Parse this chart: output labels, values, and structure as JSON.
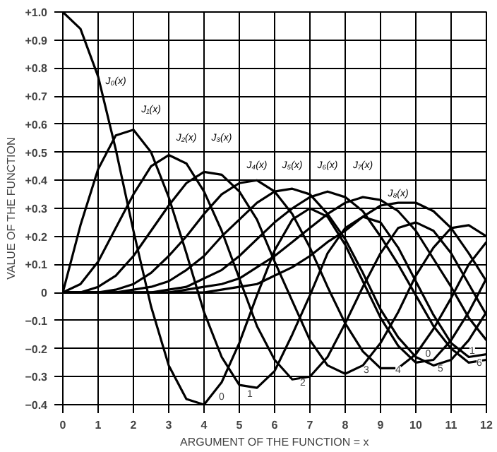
{
  "chart_data": {
    "type": "line",
    "xlabel": "ARGUMENT OF THE FUNCTION = x",
    "ylabel": "VALUE OF THE FUNCTION",
    "x": [
      0,
      0.5,
      1,
      1.5,
      2,
      2.5,
      3,
      3.5,
      4,
      4.5,
      5,
      5.5,
      6,
      6.5,
      7,
      7.5,
      8,
      8.5,
      9,
      9.5,
      10,
      10.5,
      11,
      11.5,
      12
    ],
    "series": [
      {
        "name": "J₀(x)",
        "color": "#000000",
        "values": [
          1,
          0.94,
          0.77,
          0.51,
          0.22,
          -0.05,
          -0.26,
          -0.38,
          -0.4,
          -0.32,
          -0.18,
          -0.01,
          0.15,
          0.26,
          0.3,
          0.27,
          0.17,
          0.04,
          -0.09,
          -0.19,
          -0.25,
          -0.24,
          -0.17,
          -0.07,
          0.05
        ]
      },
      {
        "name": "J₁(x)",
        "color": "#000000",
        "values": [
          0,
          0.24,
          0.44,
          0.56,
          0.58,
          0.5,
          0.34,
          0.14,
          -0.07,
          -0.23,
          -0.33,
          -0.34,
          -0.28,
          -0.15,
          -0.01,
          0.14,
          0.23,
          0.27,
          0.25,
          0.16,
          0.04,
          -0.08,
          -0.18,
          -0.23,
          -0.22
        ]
      },
      {
        "name": "J₂(x)",
        "color": "#000000",
        "values": [
          0,
          0.03,
          0.11,
          0.23,
          0.35,
          0.45,
          0.49,
          0.46,
          0.36,
          0.22,
          0.05,
          -0.12,
          -0.24,
          -0.31,
          -0.3,
          -0.23,
          -0.11,
          0.02,
          0.14,
          0.23,
          0.25,
          0.22,
          0.14,
          0.03,
          -0.08
        ]
      },
      {
        "name": "J₃(x)",
        "color": "#000000",
        "values": [
          0,
          0,
          0.02,
          0.06,
          0.13,
          0.22,
          0.31,
          0.39,
          0.43,
          0.42,
          0.36,
          0.26,
          0.11,
          -0.03,
          -0.17,
          -0.26,
          -0.29,
          -0.26,
          -0.18,
          -0.07,
          0.06,
          0.16,
          0.23,
          0.24,
          0.2
        ]
      },
      {
        "name": "J₄(x)",
        "color": "#000000",
        "values": [
          0,
          0,
          0,
          0.01,
          0.03,
          0.07,
          0.13,
          0.2,
          0.28,
          0.35,
          0.39,
          0.4,
          0.36,
          0.28,
          0.16,
          0.02,
          -0.11,
          -0.21,
          -0.27,
          -0.27,
          -0.22,
          -0.13,
          -0.02,
          0.1,
          0.18
        ]
      },
      {
        "name": "J₅(x)",
        "color": "#000000",
        "values": [
          0,
          0,
          0,
          0,
          0.01,
          0.02,
          0.04,
          0.08,
          0.13,
          0.2,
          0.26,
          0.32,
          0.36,
          0.37,
          0.35,
          0.28,
          0.19,
          0.07,
          -0.06,
          -0.16,
          -0.23,
          -0.26,
          -0.24,
          -0.17,
          -0.07
        ]
      },
      {
        "name": "J₆(x)",
        "color": "#000000",
        "values": [
          0,
          0,
          0,
          0,
          0,
          0,
          0.01,
          0.02,
          0.05,
          0.08,
          0.13,
          0.19,
          0.25,
          0.3,
          0.34,
          0.36,
          0.34,
          0.29,
          0.2,
          0.1,
          -0.01,
          -0.12,
          -0.2,
          -0.25,
          -0.24
        ]
      },
      {
        "name": "J₇(x)",
        "color": "#000000",
        "values": [
          0,
          0,
          0,
          0,
          0,
          0,
          0,
          0.01,
          0.02,
          0.03,
          0.05,
          0.09,
          0.13,
          0.18,
          0.23,
          0.28,
          0.32,
          0.34,
          0.33,
          0.29,
          0.22,
          0.12,
          0.02,
          -0.09,
          -0.17
        ]
      },
      {
        "name": "J₈(x)",
        "color": "#000000",
        "values": [
          0,
          0,
          0,
          0,
          0,
          0,
          0,
          0,
          0,
          0.01,
          0.02,
          0.03,
          0.06,
          0.09,
          0.13,
          0.18,
          0.22,
          0.27,
          0.31,
          0.32,
          0.32,
          0.29,
          0.23,
          0.14,
          0.04
        ]
      }
    ],
    "xlim": [
      0,
      12
    ],
    "xticks": [
      0,
      1,
      2,
      3,
      4,
      5,
      6,
      7,
      8,
      9,
      10,
      11,
      12
    ],
    "ylim": [
      -0.4,
      1.0
    ],
    "yticks": [
      {
        "value": 1.0,
        "label": "+1.0"
      },
      {
        "value": 0.9,
        "label": "+0.9"
      },
      {
        "value": 0.8,
        "label": "+0.8"
      },
      {
        "value": 0.7,
        "label": "+0.7"
      },
      {
        "value": 0.6,
        "label": "+0.6"
      },
      {
        "value": 0.5,
        "label": "+0.5"
      },
      {
        "value": 0.4,
        "label": "+0.4"
      },
      {
        "value": 0.3,
        "label": "+0.3"
      },
      {
        "value": 0.2,
        "label": "+0.2"
      },
      {
        "value": 0.1,
        "label": "+0.1"
      },
      0,
      -0.1,
      -0.2,
      -0.3,
      -0.4
    ],
    "annotations": [
      {
        "text": "0",
        "x": 4.5,
        "y": -0.37
      },
      {
        "text": "1",
        "x": 5.3,
        "y": -0.36
      },
      {
        "text": "2",
        "x": 6.8,
        "y": -0.32
      },
      {
        "text": "3",
        "x": 8.6,
        "y": -0.275
      },
      {
        "text": "4",
        "x": 9.5,
        "y": -0.275
      },
      {
        "text": "0",
        "x": 10.35,
        "y": -0.215
      },
      {
        "text": "5",
        "x": 10.7,
        "y": -0.27
      },
      {
        "text": "1",
        "x": 11.6,
        "y": -0.205
      },
      {
        "text": "6",
        "x": 11.8,
        "y": -0.25
      }
    ],
    "grid": true,
    "marker": "none",
    "line_style": "solid"
  }
}
